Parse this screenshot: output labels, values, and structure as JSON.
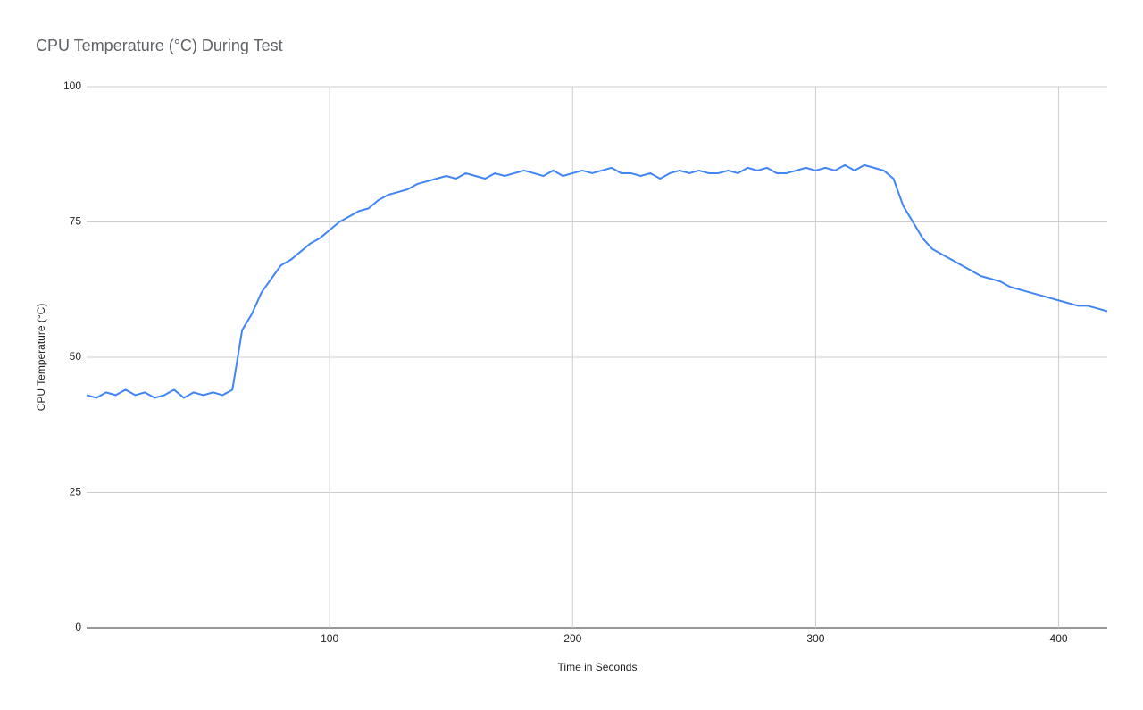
{
  "chart_data": {
    "type": "line",
    "title": "CPU Temperature (°C) During Test",
    "x_label": "Time in Seconds",
    "y_label": "CPU Temperature (°C)",
    "x": [
      0,
      4,
      8,
      12,
      16,
      20,
      24,
      28,
      32,
      36,
      40,
      44,
      48,
      52,
      56,
      60,
      64,
      68,
      72,
      76,
      80,
      84,
      88,
      92,
      96,
      100,
      104,
      108,
      112,
      116,
      120,
      124,
      128,
      132,
      136,
      140,
      144,
      148,
      152,
      156,
      160,
      164,
      168,
      172,
      176,
      180,
      184,
      188,
      192,
      196,
      200,
      204,
      208,
      212,
      216,
      220,
      224,
      228,
      232,
      236,
      240,
      244,
      248,
      252,
      256,
      260,
      264,
      268,
      272,
      276,
      280,
      284,
      288,
      292,
      296,
      300,
      304,
      308,
      312,
      316,
      320,
      324,
      328,
      332,
      336,
      340,
      344,
      348,
      352,
      356,
      360,
      364,
      368,
      372,
      376,
      380,
      384,
      388,
      392,
      396,
      400,
      404,
      408,
      412,
      416,
      420
    ],
    "series": [
      {
        "name": "CPU Temperature (°C)",
        "color": "#4285f4",
        "values": [
          43,
          42.5,
          43.5,
          43,
          44,
          43,
          43.5,
          42.5,
          43,
          44,
          42.5,
          43.5,
          43,
          43.5,
          43,
          44,
          55,
          58,
          62,
          64.5,
          67,
          68,
          69.5,
          71,
          72,
          73.5,
          75,
          76,
          77,
          77.5,
          79,
          80,
          80.5,
          81,
          82,
          82.5,
          83,
          83.5,
          83,
          84,
          83.5,
          83,
          84,
          83.5,
          84,
          84.5,
          84,
          83.5,
          84.5,
          83.5,
          84,
          84.5,
          84,
          84.5,
          85,
          84,
          84,
          83.5,
          84,
          83,
          84,
          84.5,
          84,
          84.5,
          84,
          84,
          84.5,
          84,
          85,
          84.5,
          85,
          84,
          84,
          84.5,
          85,
          84.5,
          85,
          84.5,
          85.5,
          84.5,
          85.5,
          85,
          84.5,
          83,
          78,
          75,
          72,
          70,
          69,
          68,
          67,
          66,
          65,
          64.5,
          64,
          63,
          62.5,
          62,
          61.5,
          61,
          60.5,
          60,
          59.5,
          59.5,
          59,
          58.5
        ]
      }
    ],
    "xlim": [
      0,
      420
    ],
    "ylim": [
      0,
      100
    ],
    "xticks": [
      100,
      200,
      300,
      400
    ],
    "yticks": [
      0,
      25,
      50,
      75,
      100
    ],
    "grid": true
  }
}
